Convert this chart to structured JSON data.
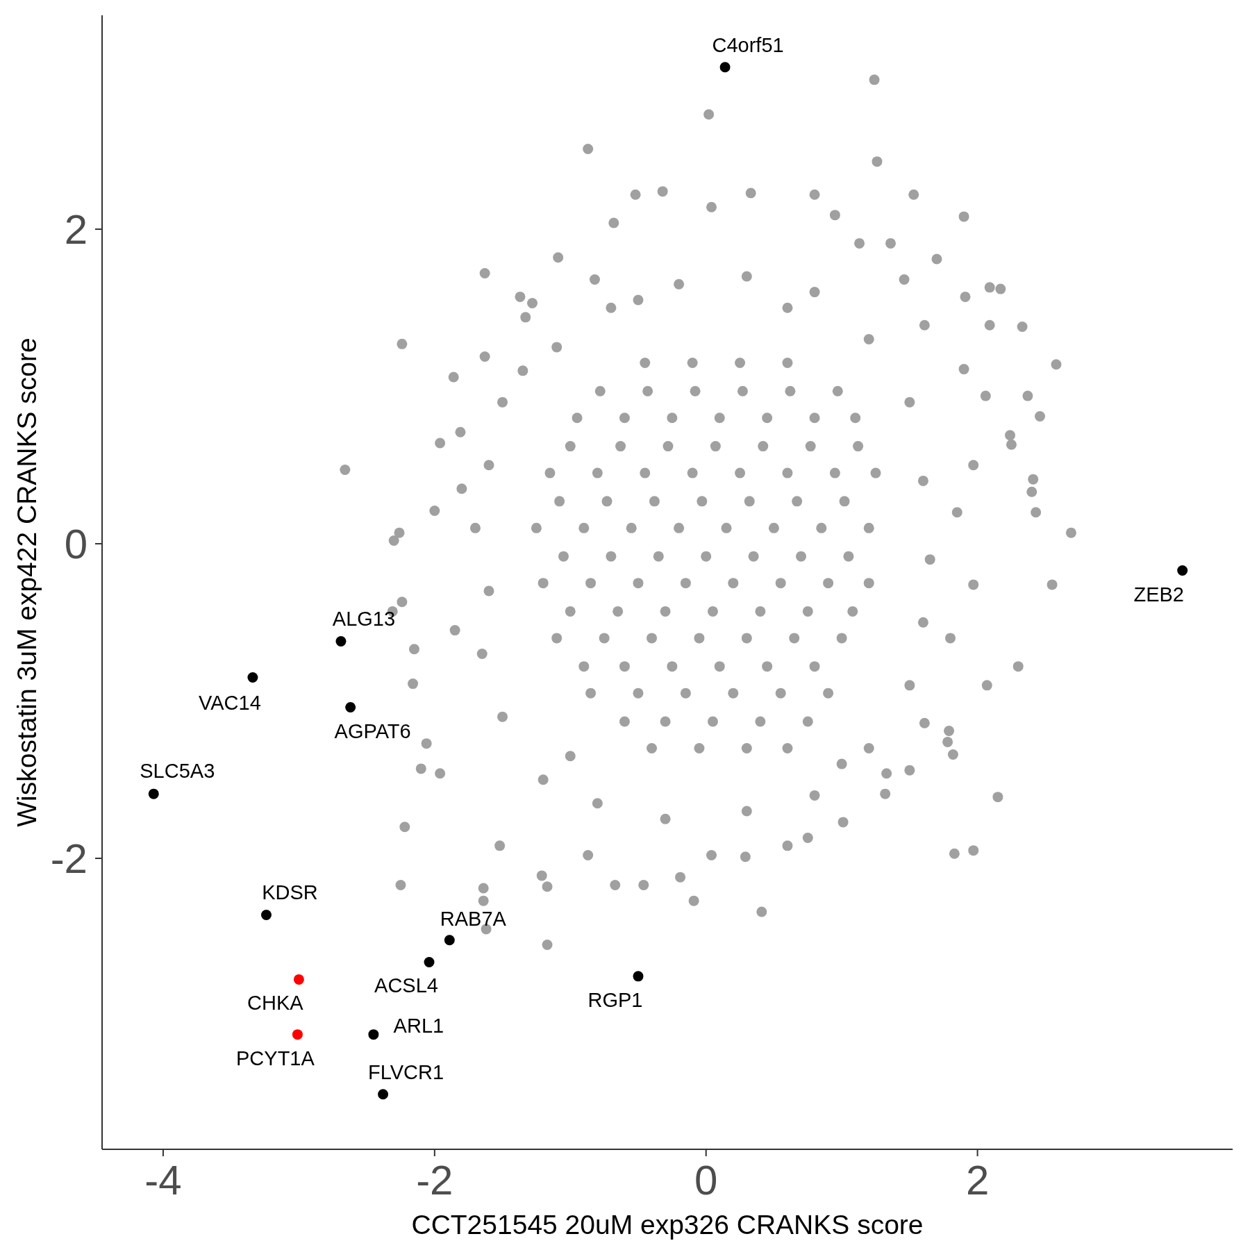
{
  "chart_data": {
    "type": "scatter",
    "xlabel": "CCT251545 20uM exp326 CRANKS score",
    "ylabel": "Wiskostatin 3uM exp422 CRANKS score",
    "xlim": [
      -4.45,
      3.88
    ],
    "ylim": [
      -3.85,
      3.36
    ],
    "xticks": [
      -4,
      -2,
      0,
      2
    ],
    "yticks": [
      -2,
      0,
      2
    ],
    "marker": "circle",
    "series": [
      {
        "color": "#a0a0a0",
        "x": [
          1.24,
          0.02,
          -0.87,
          1.26,
          -0.52,
          -0.32,
          0.33,
          0.8,
          1.53,
          -0.68,
          0.04,
          0.95,
          1.9,
          1.13,
          1.36,
          -1.09,
          1.7,
          -1.63,
          -0.82,
          1.46,
          2.09,
          2.17,
          1.91,
          -1.37,
          -1.28,
          -1.33,
          2.09,
          2.33,
          1.61,
          -2.24,
          2.58,
          -1.63,
          1.9,
          -1.86,
          2.06,
          2.37,
          2.46,
          2.24,
          2.25,
          1.97,
          2.41,
          2.4,
          2.43,
          2.69,
          2.55,
          1.97,
          -2.66,
          -1.96,
          -1.81,
          -2.3,
          -2.26,
          -2.0,
          -2.24,
          -2.31,
          -2.15,
          -2.16,
          -2.06,
          -2.1,
          -1.96,
          -2.22,
          -2.25,
          -1.64,
          -1.64,
          -1.62,
          -1.17,
          -1.21,
          -1.17,
          -0.87,
          -0.67,
          -0.46,
          -0.09,
          0.41,
          -0.19,
          0.04,
          0.29,
          0.6,
          0.75,
          1.01,
          1.32,
          1.33,
          1.61,
          1.79,
          1.78,
          1.82,
          2.15,
          2.07,
          2.3,
          1.83,
          1.97,
          1.5,
          -1.52,
          -1.5,
          -1.6,
          -1.7,
          -1.6,
          -1.65,
          -1.5,
          -1.2,
          -0.8,
          -0.3,
          0.3,
          0.8,
          1.2,
          1.5,
          1.6,
          1.65,
          1.6,
          1.5,
          1.2,
          0.8,
          0.3,
          -0.2,
          -0.7,
          -1.1,
          -1.35,
          -1.8,
          -1.85,
          1.85,
          1.8,
          -1.0,
          1.0,
          -0.5,
          0.6,
          -0.45,
          -0.1,
          0.25,
          0.6,
          -0.95,
          -0.6,
          -0.25,
          0.1,
          0.45,
          0.8,
          1.1,
          -1.15,
          -0.8,
          -0.45,
          -0.1,
          0.25,
          0.6,
          0.95,
          1.25,
          -1.25,
          -0.9,
          -0.55,
          -0.2,
          0.15,
          0.5,
          0.85,
          1.2,
          -1.2,
          -0.85,
          -0.5,
          -0.15,
          0.2,
          0.55,
          0.9,
          1.2,
          -1.1,
          -0.75,
          -0.4,
          -0.05,
          0.3,
          0.65,
          1.0,
          -0.85,
          -0.5,
          -0.15,
          0.2,
          0.55,
          0.9,
          -0.4,
          -0.05,
          0.3,
          0.6,
          -0.78,
          -0.43,
          -0.08,
          0.27,
          0.62,
          0.97,
          -1.0,
          -0.63,
          -0.28,
          0.07,
          0.42,
          0.77,
          1.12,
          -1.08,
          -0.73,
          -0.38,
          -0.03,
          0.32,
          0.67,
          1.02,
          -1.05,
          -0.7,
          -0.35,
          0.0,
          0.35,
          0.7,
          1.05,
          -1.0,
          -0.65,
          -0.3,
          0.05,
          0.4,
          0.75,
          1.08,
          -0.9,
          -0.6,
          -0.25,
          0.1,
          0.45,
          0.8,
          -0.6,
          -0.3,
          0.05,
          0.4,
          0.75
        ],
        "values": [
          2.95,
          2.73,
          2.51,
          2.43,
          2.22,
          2.24,
          2.23,
          2.22,
          2.22,
          2.04,
          2.14,
          2.09,
          2.08,
          1.91,
          1.91,
          1.82,
          1.81,
          1.72,
          1.68,
          1.68,
          1.63,
          1.62,
          1.57,
          1.57,
          1.53,
          1.44,
          1.39,
          1.38,
          1.39,
          1.27,
          1.14,
          1.19,
          1.11,
          1.06,
          0.94,
          0.94,
          0.81,
          0.69,
          0.63,
          0.5,
          0.41,
          0.33,
          0.2,
          0.07,
          -0.26,
          -0.26,
          0.47,
          0.64,
          0.71,
          0.02,
          0.07,
          0.21,
          -0.37,
          -0.43,
          -0.67,
          -0.89,
          -1.27,
          -1.43,
          -1.46,
          -1.8,
          -2.17,
          -2.19,
          -2.27,
          -2.45,
          -2.55,
          -2.11,
          -2.18,
          -1.98,
          -2.17,
          -2.17,
          -2.27,
          -2.34,
          -2.12,
          -1.98,
          -1.99,
          -1.92,
          -1.87,
          -1.77,
          -1.59,
          -1.46,
          -1.14,
          -1.19,
          -1.26,
          -1.34,
          -1.61,
          -0.9,
          -0.78,
          -1.97,
          -1.95,
          -1.44,
          -1.92,
          0.9,
          0.5,
          0.1,
          -0.3,
          -0.7,
          -1.1,
          -1.5,
          -1.65,
          -1.75,
          -1.7,
          -1.6,
          -1.3,
          -0.9,
          -0.5,
          -0.1,
          0.4,
          0.9,
          1.3,
          1.6,
          1.7,
          1.65,
          1.5,
          1.25,
          1.1,
          0.35,
          -0.55,
          0.2,
          -0.6,
          -1.35,
          -1.4,
          1.55,
          1.5,
          1.15,
          1.15,
          1.15,
          1.15,
          0.8,
          0.8,
          0.8,
          0.8,
          0.8,
          0.8,
          0.8,
          0.45,
          0.45,
          0.45,
          0.45,
          0.45,
          0.45,
          0.45,
          0.45,
          0.1,
          0.1,
          0.1,
          0.1,
          0.1,
          0.1,
          0.1,
          0.1,
          -0.25,
          -0.25,
          -0.25,
          -0.25,
          -0.25,
          -0.25,
          -0.25,
          -0.25,
          -0.6,
          -0.6,
          -0.6,
          -0.6,
          -0.6,
          -0.6,
          -0.6,
          -0.95,
          -0.95,
          -0.95,
          -0.95,
          -0.95,
          -0.95,
          -1.3,
          -1.3,
          -1.3,
          -1.3,
          0.97,
          0.97,
          0.97,
          0.97,
          0.97,
          0.97,
          0.62,
          0.62,
          0.62,
          0.62,
          0.62,
          0.62,
          0.62,
          0.27,
          0.27,
          0.27,
          0.27,
          0.27,
          0.27,
          0.27,
          -0.08,
          -0.08,
          -0.08,
          -0.08,
          -0.08,
          -0.08,
          -0.08,
          -0.43,
          -0.43,
          -0.43,
          -0.43,
          -0.43,
          -0.43,
          -0.43,
          -0.78,
          -0.78,
          -0.78,
          -0.78,
          -0.78,
          -0.78,
          -1.13,
          -1.13,
          -1.13,
          -1.13,
          -1.13
        ]
      },
      {
        "color": "#000000",
        "x": [
          0.14,
          3.51,
          -2.69,
          -3.34,
          -2.62,
          -4.07,
          -3.24,
          -1.89,
          -2.04,
          -0.5,
          -2.45,
          -2.38
        ],
        "values": [
          3.03,
          -0.17,
          -0.62,
          -0.85,
          -1.04,
          -1.59,
          -2.36,
          -2.52,
          -2.66,
          -2.75,
          -3.12,
          -3.5
        ]
      },
      {
        "color": "#ff0000",
        "x": [
          -3.0,
          -3.01
        ],
        "values": [
          -2.77,
          -3.12
        ]
      }
    ],
    "annotations": [
      {
        "text": "C4orf51",
        "x": 0.14,
        "y": 3.03
      },
      {
        "text": "ZEB2",
        "x": 3.51,
        "y": -0.17
      },
      {
        "text": "ALG13",
        "x": -2.69,
        "y": -0.62
      },
      {
        "text": "VAC14",
        "x": -3.34,
        "y": -0.85
      },
      {
        "text": "AGPAT6",
        "x": -2.62,
        "y": -1.04
      },
      {
        "text": "SLC5A3",
        "x": -4.07,
        "y": -1.59
      },
      {
        "text": "KDSR",
        "x": -3.24,
        "y": -2.36
      },
      {
        "text": "RAB7A",
        "x": -1.89,
        "y": -2.52
      },
      {
        "text": "ACSL4",
        "x": -2.04,
        "y": -2.66
      },
      {
        "text": "RGP1",
        "x": -0.5,
        "y": -2.75
      },
      {
        "text": "CHKA",
        "x": -3.0,
        "y": -2.77
      },
      {
        "text": "PCYT1A",
        "x": -3.01,
        "y": -3.12
      },
      {
        "text": "ARL1",
        "x": -2.45,
        "y": -3.12
      },
      {
        "text": "FLVCR1",
        "x": -2.38,
        "y": -3.5
      }
    ]
  }
}
